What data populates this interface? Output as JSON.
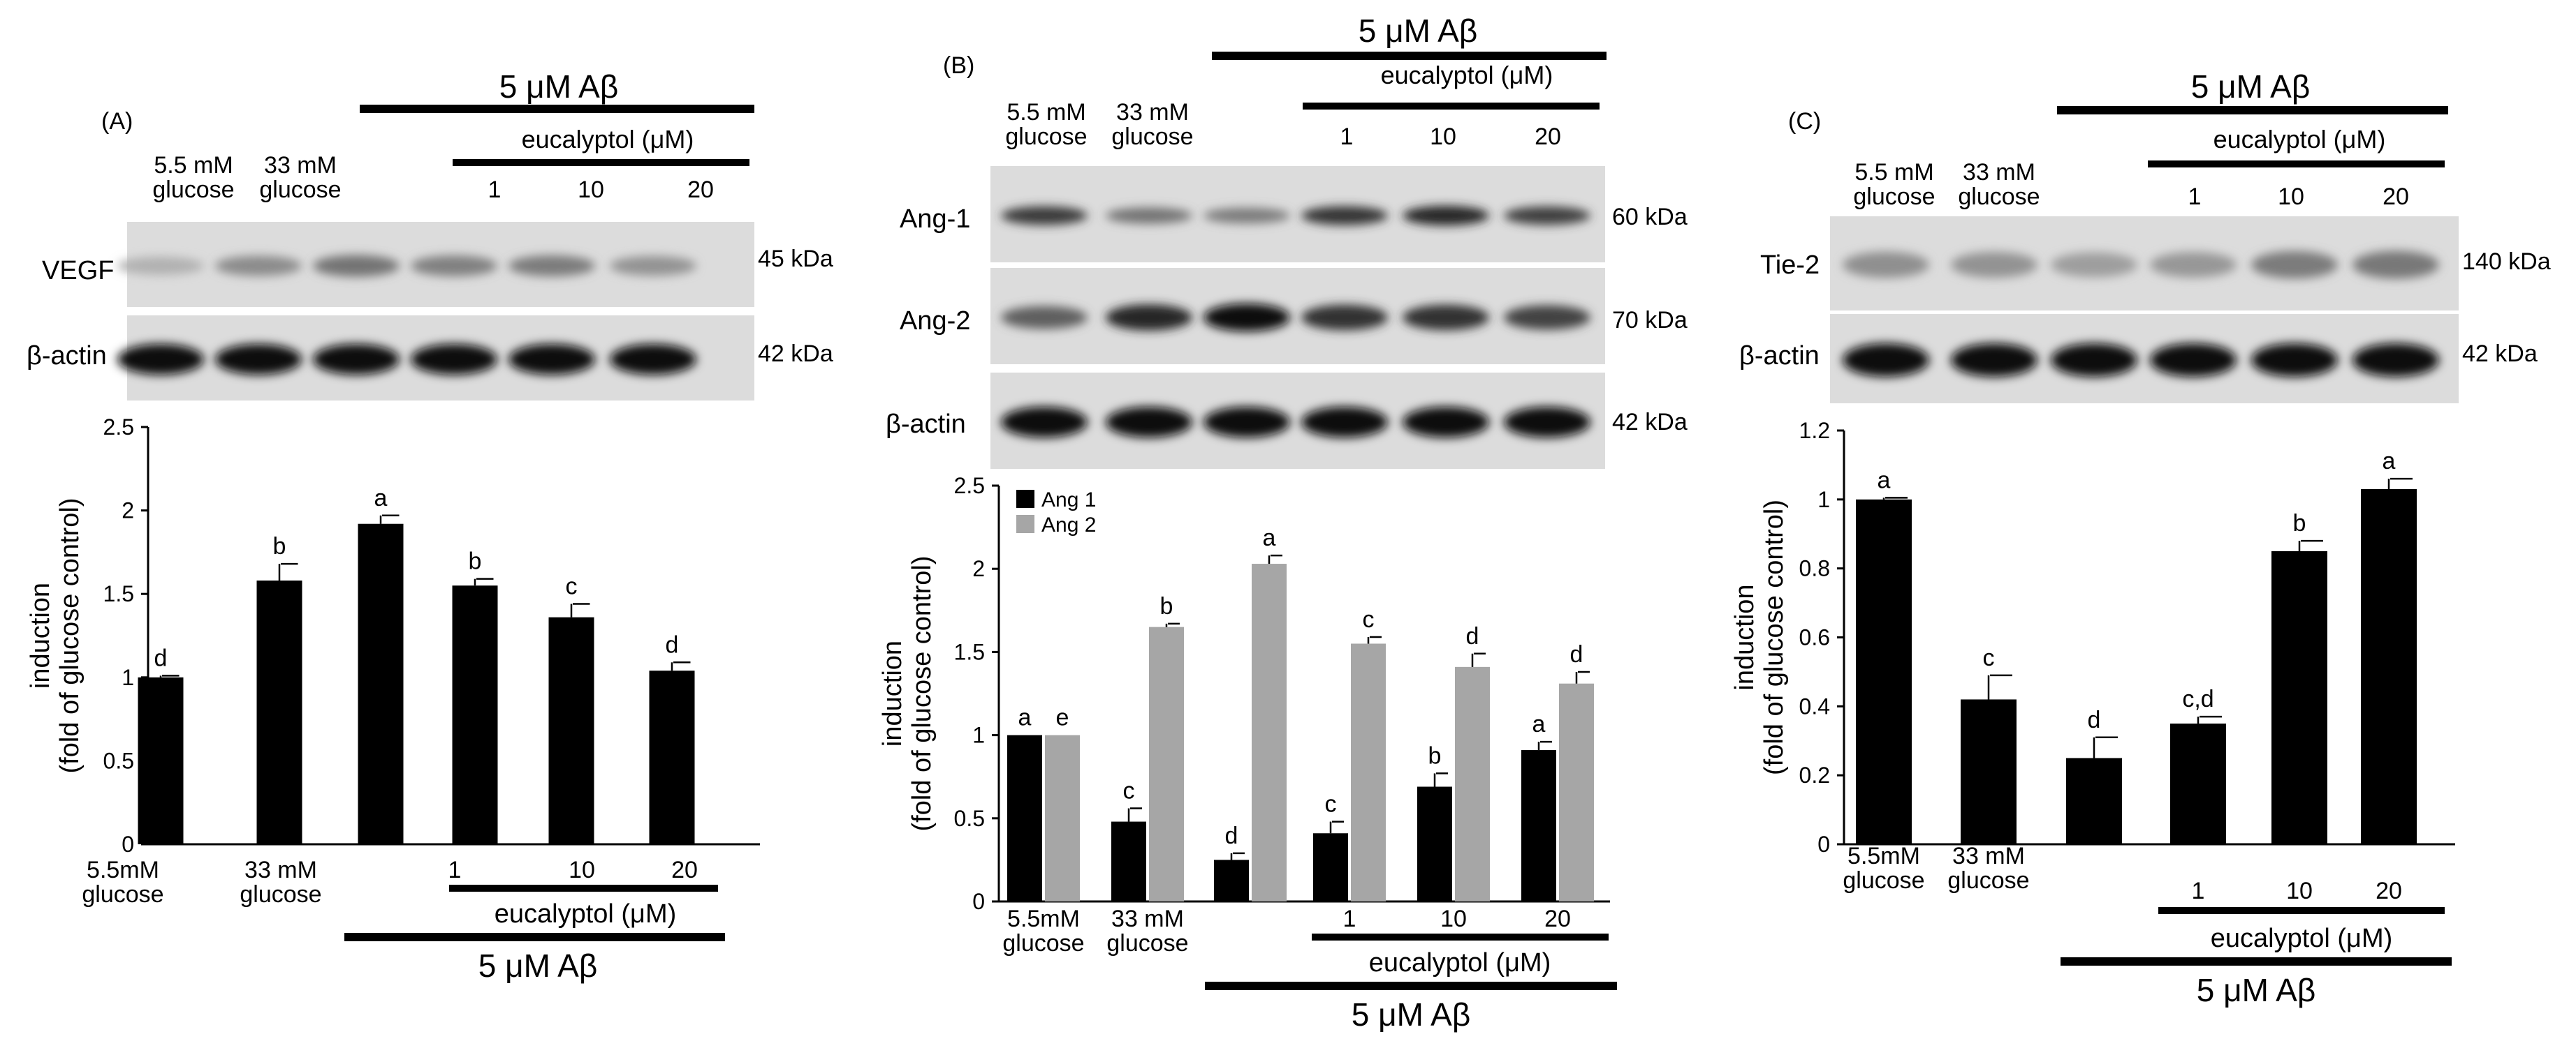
{
  "panels": [
    {
      "id": "A",
      "label": "(A)",
      "treatment_header": "5 μM Aβ",
      "drug_header": "eucalyptol (μM)",
      "lane_headers": [
        "5.5 mM\nglucose",
        "33 mM\nglucose",
        "",
        "1",
        "10",
        "20"
      ],
      "blots": [
        {
          "name": "VEGF",
          "size": "45 kDa",
          "band_intensity": [
            0.12,
            0.32,
            0.45,
            0.38,
            0.4,
            0.28
          ]
        },
        {
          "name": "β-actin",
          "size": "42 kDa",
          "band_intensity": [
            1,
            1,
            1,
            1,
            1,
            1
          ]
        }
      ],
      "bottom_labels": [
        "5.5mM\nglucose",
        "33 mM\nglucose",
        "",
        "1",
        "10",
        "20"
      ],
      "bottom_drug": "eucalyptol (μM)",
      "bottom_treatment": "5 μM Aβ"
    },
    {
      "id": "B",
      "label": "(B)",
      "treatment_header": "5 μM Aβ",
      "drug_header": "eucalyptol (μM)",
      "lane_headers": [
        "5.5 mM\nglucose",
        "33 mM\nglucose",
        "",
        "1",
        "10",
        "20"
      ],
      "blots": [
        {
          "name": "Ang-1",
          "size": "60 kDa",
          "band_intensity": [
            0.75,
            0.45,
            0.4,
            0.78,
            0.85,
            0.72
          ]
        },
        {
          "name": "Ang-2",
          "size": "70 kDa",
          "band_intensity": [
            0.55,
            0.85,
            1,
            0.8,
            0.8,
            0.7
          ]
        },
        {
          "name": "β-actin",
          "size": "42 kDa",
          "band_intensity": [
            1,
            1,
            1,
            1,
            1,
            1
          ]
        }
      ],
      "bottom_labels": [
        "5.5mM\nglucose",
        "33 mM\nglucose",
        "",
        "1",
        "10",
        "20"
      ],
      "bottom_drug": "eucalyptol (μM)",
      "bottom_treatment": "5 μM Aβ"
    },
    {
      "id": "C",
      "label": "(C)",
      "treatment_header": "5 μM Aβ",
      "drug_header": "eucalyptol (μM)",
      "lane_headers": [
        "5.5 mM\nglucose",
        "33 mM\nglucose",
        "",
        "1",
        "10",
        "20"
      ],
      "blots": [
        {
          "name": "Tie-2",
          "size": "140 kDa",
          "band_intensity": [
            0.3,
            0.28,
            0.22,
            0.26,
            0.4,
            0.42
          ]
        },
        {
          "name": "β-actin",
          "size": "42 kDa",
          "band_intensity": [
            1,
            1,
            1,
            1,
            1,
            1
          ]
        }
      ],
      "bottom_labels": [
        "5.5mM\nglucose",
        "33 mM\nglucose",
        "",
        "1",
        "10",
        "20"
      ],
      "bottom_drug": "eucalyptol (μM)",
      "bottom_treatment": "5 μM Aβ"
    }
  ],
  "chart_data": [
    {
      "type": "bar",
      "panel": "A",
      "ylabel": "induction\n(fold of glucose control)",
      "ylim": [
        0,
        2.5
      ],
      "yticks": [
        "0",
        "0.5",
        "1",
        "1.5",
        "2",
        "2.5"
      ],
      "ytick_values": [
        0,
        0.5,
        1,
        1.5,
        2,
        2.5
      ],
      "categories": [
        "5.5mM glucose",
        "33 mM glucose",
        "5 μM Aβ",
        "1",
        "10",
        "20"
      ],
      "series": [
        {
          "values": [
            1.0,
            1.58,
            1.92,
            1.55,
            1.36,
            1.04
          ],
          "errors": [
            0.01,
            0.1,
            0.05,
            0.04,
            0.08,
            0.05
          ],
          "letters": [
            "d",
            "b",
            "a",
            "b",
            "c",
            "d"
          ],
          "color": "#000000"
        }
      ],
      "grid": false
    },
    {
      "type": "bar",
      "panel": "B",
      "ylabel": "induction\n(fold of glucose control)",
      "ylim": [
        0,
        2.5
      ],
      "yticks": [
        "0",
        "0.5",
        "1",
        "1.5",
        "2",
        "2.5"
      ],
      "ytick_values": [
        0,
        0.5,
        1,
        1.5,
        2,
        2.5
      ],
      "categories": [
        "5.5mM glucose",
        "33 mM glucose",
        "5 μM Aβ",
        "1",
        "10",
        "20"
      ],
      "series": [
        {
          "name": "Ang 1",
          "values": [
            1.0,
            0.48,
            0.25,
            0.41,
            0.69,
            0.91
          ],
          "errors": [
            0.0,
            0.08,
            0.04,
            0.07,
            0.08,
            0.05
          ],
          "letters": [
            "a",
            "c",
            "d",
            "c",
            "b",
            "a"
          ],
          "color": "#000000"
        },
        {
          "name": "Ang 2",
          "values": [
            1.0,
            1.65,
            2.03,
            1.55,
            1.41,
            1.31
          ],
          "errors": [
            0.0,
            0.02,
            0.05,
            0.04,
            0.08,
            0.07
          ],
          "letters": [
            "e",
            "b",
            "a",
            "c",
            "d",
            "d"
          ],
          "color": "#a6a6a6"
        }
      ],
      "legend_position": "top-left",
      "grid": false
    },
    {
      "type": "bar",
      "panel": "C",
      "ylabel": "induction\n(fold of glucose control)",
      "ylim": [
        0,
        1.2
      ],
      "yticks": [
        "0",
        "0.2",
        "0.4",
        "0.6",
        "0.8",
        "1",
        "1.2"
      ],
      "ytick_values": [
        0,
        0.2,
        0.4,
        0.6,
        0.8,
        1.0,
        1.2
      ],
      "categories": [
        "5.5mM glucose",
        "33 mM glucose",
        "5 μM Aβ",
        "1",
        "10",
        "20"
      ],
      "series": [
        {
          "values": [
            1.0,
            0.42,
            0.25,
            0.35,
            0.85,
            1.03
          ],
          "errors": [
            0.005,
            0.07,
            0.06,
            0.02,
            0.03,
            0.03
          ],
          "letters": [
            "a",
            "c",
            "d",
            "c,d",
            "b",
            "a"
          ],
          "color": "#000000"
        }
      ],
      "grid": false
    }
  ]
}
